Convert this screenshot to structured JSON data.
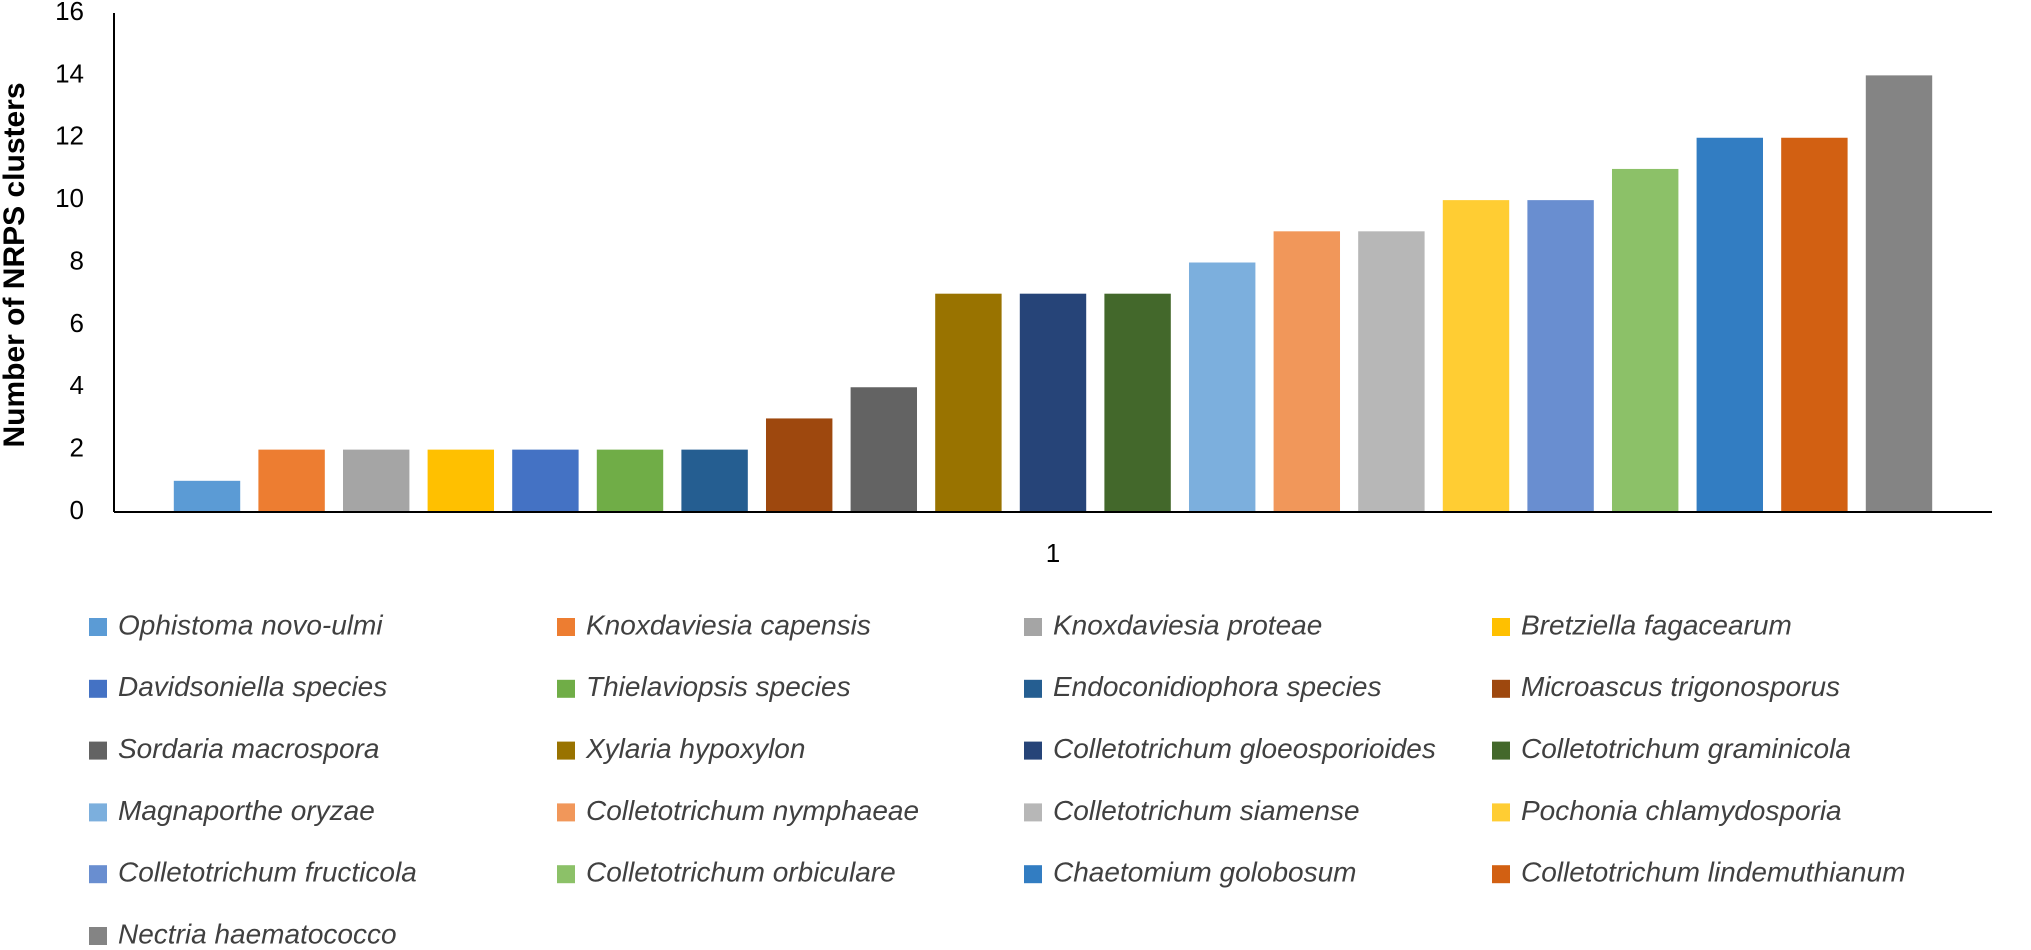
{
  "chart_data": {
    "type": "bar",
    "y_label": "Number of NRPS clusters",
    "categories": [
      "1"
    ],
    "series": [
      {
        "name": "Ophistoma novo-ulmi",
        "color": "#5b9bd5",
        "values": [
          1
        ]
      },
      {
        "name": "Knoxdaviesia capensis",
        "color": "#ed7d31",
        "values": [
          2
        ]
      },
      {
        "name": "Knoxdaviesia proteae",
        "color": "#a5a5a5",
        "values": [
          2
        ]
      },
      {
        "name": "Bretziella fagacearum",
        "color": "#ffc000",
        "values": [
          2
        ]
      },
      {
        "name": "Davidsoniella species",
        "color": "#4472c4",
        "values": [
          2
        ]
      },
      {
        "name": "Thielaviopsis species",
        "color": "#70ad47",
        "values": [
          2
        ]
      },
      {
        "name": "Endoconidiophora species",
        "color": "#255e91",
        "values": [
          2
        ]
      },
      {
        "name": "Microascus trigonosporus",
        "color": "#9e480e",
        "values": [
          3
        ]
      },
      {
        "name": "Sordaria macrospora",
        "color": "#636363",
        "values": [
          4
        ]
      },
      {
        "name": "Xylaria hypoxylon",
        "color": "#997300",
        "values": [
          7
        ]
      },
      {
        "name": "Colletotrichum gloeosporioides",
        "color": "#264478",
        "values": [
          7
        ]
      },
      {
        "name": "Colletotrichum graminicola",
        "color": "#43682b",
        "values": [
          7
        ]
      },
      {
        "name": "Magnaporthe oryzae",
        "color": "#7cafdd",
        "values": [
          8
        ]
      },
      {
        "name": "Colletotrichum nymphaeae",
        "color": "#f1975a",
        "values": [
          9
        ]
      },
      {
        "name": "Colletotrichum siamense",
        "color": "#b7b7b7",
        "values": [
          9
        ]
      },
      {
        "name": "Pochonia chlamydosporia",
        "color": "#ffcd33",
        "values": [
          10
        ]
      },
      {
        "name": "Colletotrichum fructicola",
        "color": "#698ed0",
        "values": [
          10
        ]
      },
      {
        "name": "Colletotrichum orbiculare",
        "color": "#8cc168",
        "values": [
          11
        ]
      },
      {
        "name": "Chaetomium golobosum",
        "color": "#327dc2",
        "values": [
          12
        ]
      },
      {
        "name": "Colletotrichum lindemuthianum",
        "color": "#d26012",
        "values": [
          12
        ]
      },
      {
        "name": "Nectria haematococco",
        "color": "#848484",
        "values": [
          14
        ]
      }
    ],
    "ylim": [
      0,
      16
    ],
    "yticks": [
      0,
      2,
      4,
      6,
      8,
      10,
      12,
      14,
      16
    ],
    "grid": false,
    "legend": "bottom"
  }
}
